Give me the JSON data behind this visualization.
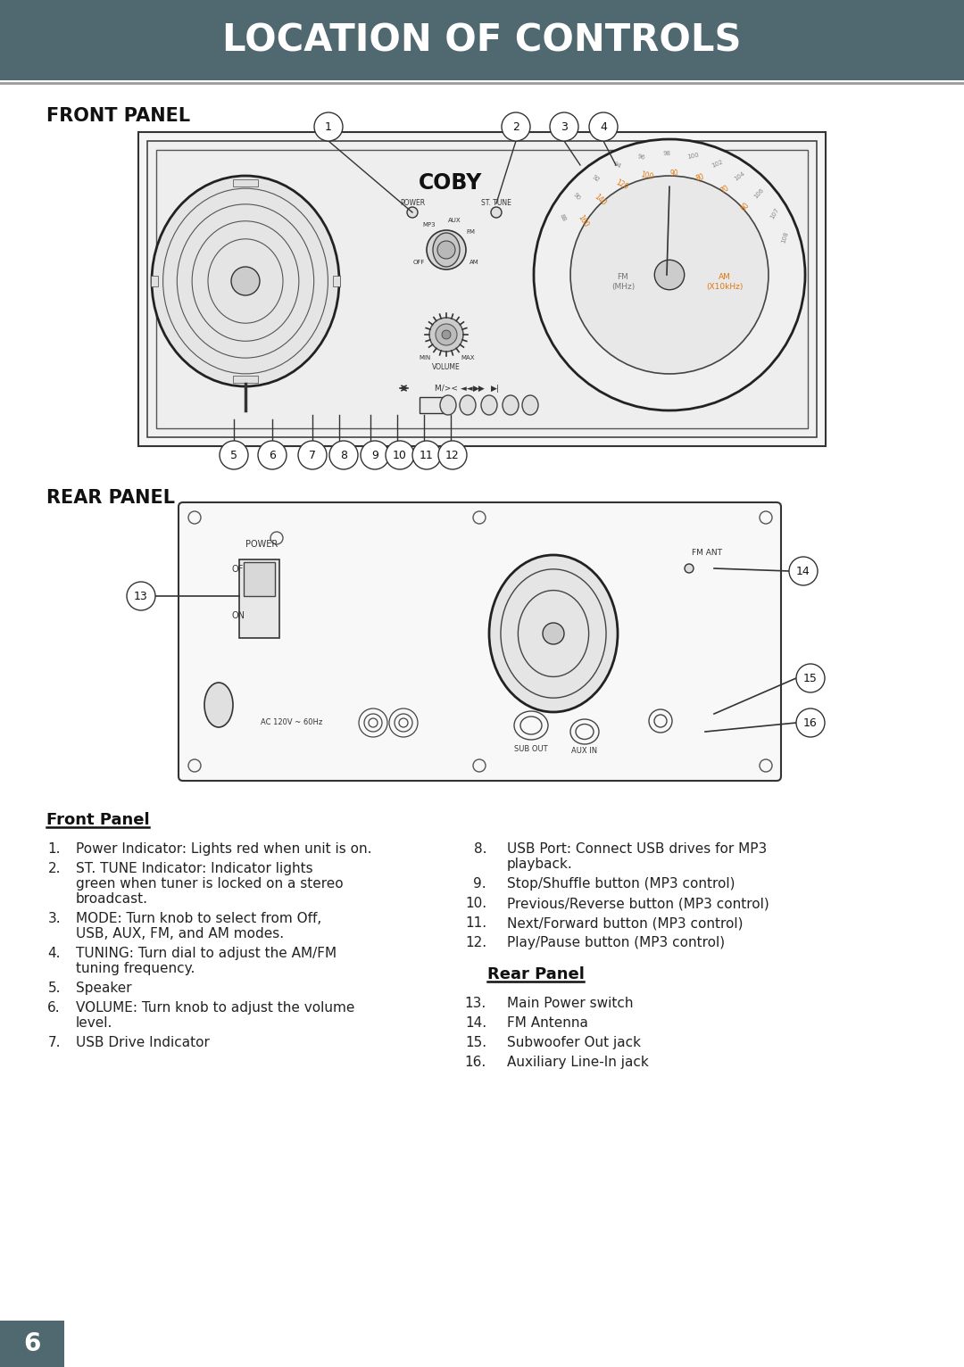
{
  "title": "LOCATION OF CONTROLS",
  "title_bg": "#506870",
  "title_color": "#ffffff",
  "title_fontsize": 30,
  "page_bg": "#ffffff",
  "front_panel_label": "FRONT PANEL",
  "rear_panel_label": "REAR PANEL",
  "section_fontsize": 14,
  "body_fontsize": 11,
  "front_panel_items_left": [
    "Power Indicator: Lights red when unit is on.",
    "ST. TUNE Indicator: Indicator lights\ngreen when tuner is locked on a stereo\nbroadcast.",
    "MODE: Turn knob to select from Off,\nUSB, AUX, FM, and AM modes.",
    "TUNING: Turn dial to adjust the AM/FM\ntuning frequency.",
    "Speaker",
    "VOLUME: Turn knob to adjust the volume\nlevel.",
    "USB Drive Indicator"
  ],
  "front_panel_items_right": [
    "USB Port: Connect USB drives for MP3\nplayback.",
    "Stop/Shuffle button (MP3 control)",
    "Previous/Reverse button (MP3 control)",
    "Next/Forward button (MP3 control)",
    "Play/Pause button (MP3 control)"
  ],
  "rear_panel_items": [
    "Main Power switch",
    "FM Antenna",
    "Subwoofer Out jack",
    "Auxiliary Line-In jack"
  ],
  "front_left_nums": [
    "1.",
    "2.",
    "3.",
    "4.",
    "5.",
    "6.",
    "7."
  ],
  "front_right_nums": [
    "8.",
    "9.",
    "10.",
    "11.",
    "12."
  ],
  "rear_nums": [
    "13.",
    "14.",
    "15.",
    "16."
  ],
  "footer_number": "6",
  "footer_bg": "#506870",
  "footer_color": "#ffffff"
}
